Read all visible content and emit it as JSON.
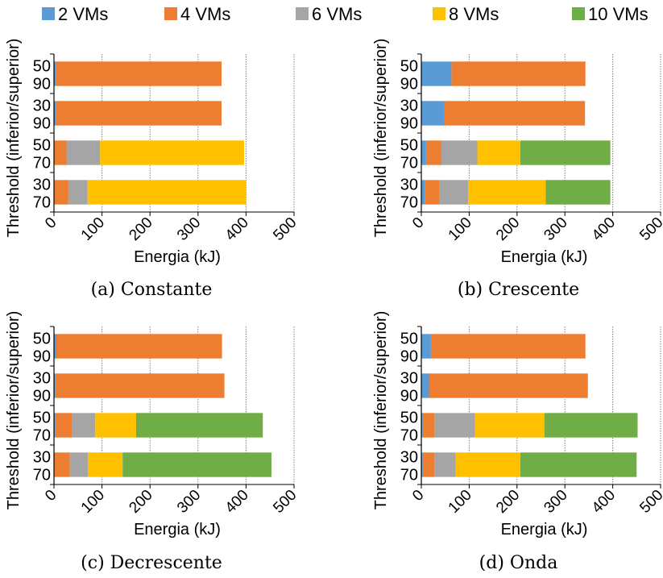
{
  "legend": [
    {
      "name": "2 VMs",
      "color": "#5b9bd5"
    },
    {
      "name": "4 VMs",
      "color": "#ed7d31"
    },
    {
      "name": "6 VMs",
      "color": "#a5a5a5"
    },
    {
      "name": "8 VMs",
      "color": "#ffc000"
    },
    {
      "name": "10 VMs",
      "color": "#70ad47"
    }
  ],
  "chart_data": [
    {
      "type": "bar",
      "orientation": "horizontal",
      "stacked": true,
      "caption": "(a) Constante",
      "xlabel": "Energia (kJ)",
      "ylabel": "Threshold (inferior/superior)",
      "xlim": [
        0,
        500
      ],
      "xticks": [
        0,
        100,
        200,
        300,
        400,
        500
      ],
      "grid": "vertical",
      "categories": [
        [
          "50",
          "90"
        ],
        [
          "30",
          "90"
        ],
        [
          "50",
          "70"
        ],
        [
          "30",
          "70"
        ]
      ],
      "series": [
        {
          "name": "2 VMs",
          "values": [
            4,
            4,
            0,
            0
          ]
        },
        {
          "name": "4 VMs",
          "values": [
            345,
            345,
            26,
            30
          ]
        },
        {
          "name": "6 VMs",
          "values": [
            0,
            0,
            70,
            40
          ]
        },
        {
          "name": "8 VMs",
          "values": [
            0,
            0,
            300,
            330
          ]
        },
        {
          "name": "10 VMs",
          "values": [
            0,
            0,
            0,
            0
          ]
        }
      ]
    },
    {
      "type": "bar",
      "orientation": "horizontal",
      "stacked": true,
      "caption": "(b) Crescente",
      "xlabel": "Energia (kJ)",
      "ylabel": "Threshold (inferior/superior)",
      "xlim": [
        0,
        500
      ],
      "xticks": [
        0,
        100,
        200,
        300,
        400,
        500
      ],
      "grid": "vertical",
      "categories": [
        [
          "50",
          "90"
        ],
        [
          "30",
          "90"
        ],
        [
          "50",
          "70"
        ],
        [
          "30",
          "70"
        ]
      ],
      "series": [
        {
          "name": "2 VMs",
          "values": [
            63,
            48,
            10,
            8
          ]
        },
        {
          "name": "4 VMs",
          "values": [
            280,
            294,
            32,
            30
          ]
        },
        {
          "name": "6 VMs",
          "values": [
            0,
            0,
            75,
            60
          ]
        },
        {
          "name": "8 VMs",
          "values": [
            0,
            0,
            90,
            162
          ]
        },
        {
          "name": "10 VMs",
          "values": [
            0,
            0,
            188,
            135
          ]
        }
      ]
    },
    {
      "type": "bar",
      "orientation": "horizontal",
      "stacked": true,
      "caption": "(c) Decrescente",
      "xlabel": "Energia (kJ)",
      "ylabel": "Threshold (inferior/superior)",
      "xlim": [
        0,
        500
      ],
      "xticks": [
        0,
        100,
        200,
        300,
        400,
        500
      ],
      "grid": "vertical",
      "categories": [
        [
          "50",
          "90"
        ],
        [
          "30",
          "90"
        ],
        [
          "50",
          "70"
        ],
        [
          "30",
          "70"
        ]
      ],
      "series": [
        {
          "name": "2 VMs",
          "values": [
            5,
            3,
            3,
            0
          ]
        },
        {
          "name": "4 VMs",
          "values": [
            345,
            352,
            35,
            33
          ]
        },
        {
          "name": "6 VMs",
          "values": [
            0,
            0,
            48,
            38
          ]
        },
        {
          "name": "8 VMs",
          "values": [
            0,
            0,
            85,
            72
          ]
        },
        {
          "name": "10 VMs",
          "values": [
            0,
            0,
            264,
            310
          ]
        }
      ]
    },
    {
      "type": "bar",
      "orientation": "horizontal",
      "stacked": true,
      "caption": "(d) Onda",
      "xlabel": "Energia (kJ)",
      "ylabel": "Threshold (inferior/superior)",
      "xlim": [
        0,
        500
      ],
      "xticks": [
        0,
        100,
        200,
        300,
        400,
        500
      ],
      "grid": "vertical",
      "categories": [
        [
          "50",
          "90"
        ],
        [
          "30",
          "90"
        ],
        [
          "50",
          "70"
        ],
        [
          "30",
          "70"
        ]
      ],
      "series": [
        {
          "name": "2 VMs",
          "values": [
            20,
            16,
            3,
            3
          ]
        },
        {
          "name": "4 VMs",
          "values": [
            323,
            332,
            24,
            24
          ]
        },
        {
          "name": "6 VMs",
          "values": [
            0,
            0,
            85,
            45
          ]
        },
        {
          "name": "8 VMs",
          "values": [
            0,
            0,
            145,
            135
          ]
        },
        {
          "name": "10 VMs",
          "values": [
            0,
            0,
            195,
            243
          ]
        }
      ]
    }
  ]
}
